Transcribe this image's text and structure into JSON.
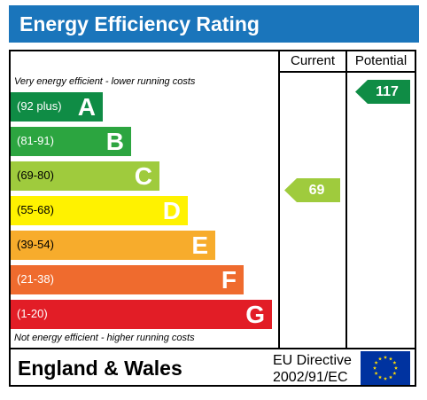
{
  "title": "Energy Efficiency Rating",
  "columns": {
    "current": "Current",
    "potential": "Potential"
  },
  "top_note": "Very energy efficient - lower running costs",
  "bottom_note": "Not energy efficient - higher running costs",
  "bands": [
    {
      "range": "(92 plus)",
      "letter": "A",
      "color": "#0f8c45"
    },
    {
      "range": "(81-91)",
      "letter": "B",
      "color": "#2ca540"
    },
    {
      "range": "(69-80)",
      "letter": "C",
      "color": "#9fcb3d"
    },
    {
      "range": "(55-68)",
      "letter": "D",
      "color": "#fff200"
    },
    {
      "range": "(39-54)",
      "letter": "E",
      "color": "#f7ac2c"
    },
    {
      "range": "(21-38)",
      "letter": "F",
      "color": "#ef6b2e"
    },
    {
      "range": "(1-20)",
      "letter": "G",
      "color": "#e21d26"
    }
  ],
  "current_rating": {
    "value": "69",
    "band": "C",
    "color": "#9fcb3d"
  },
  "potential_rating": {
    "value": "117",
    "band": "A",
    "color": "#0f8c45"
  },
  "footer": {
    "country": "England & Wales",
    "directive_line1": "EU Directive",
    "directive_line2": "2002/91/EC"
  },
  "eu_flag": {
    "icon": "eu-flag-icon",
    "background": "#0033a0",
    "star_color": "#ffdd00"
  }
}
